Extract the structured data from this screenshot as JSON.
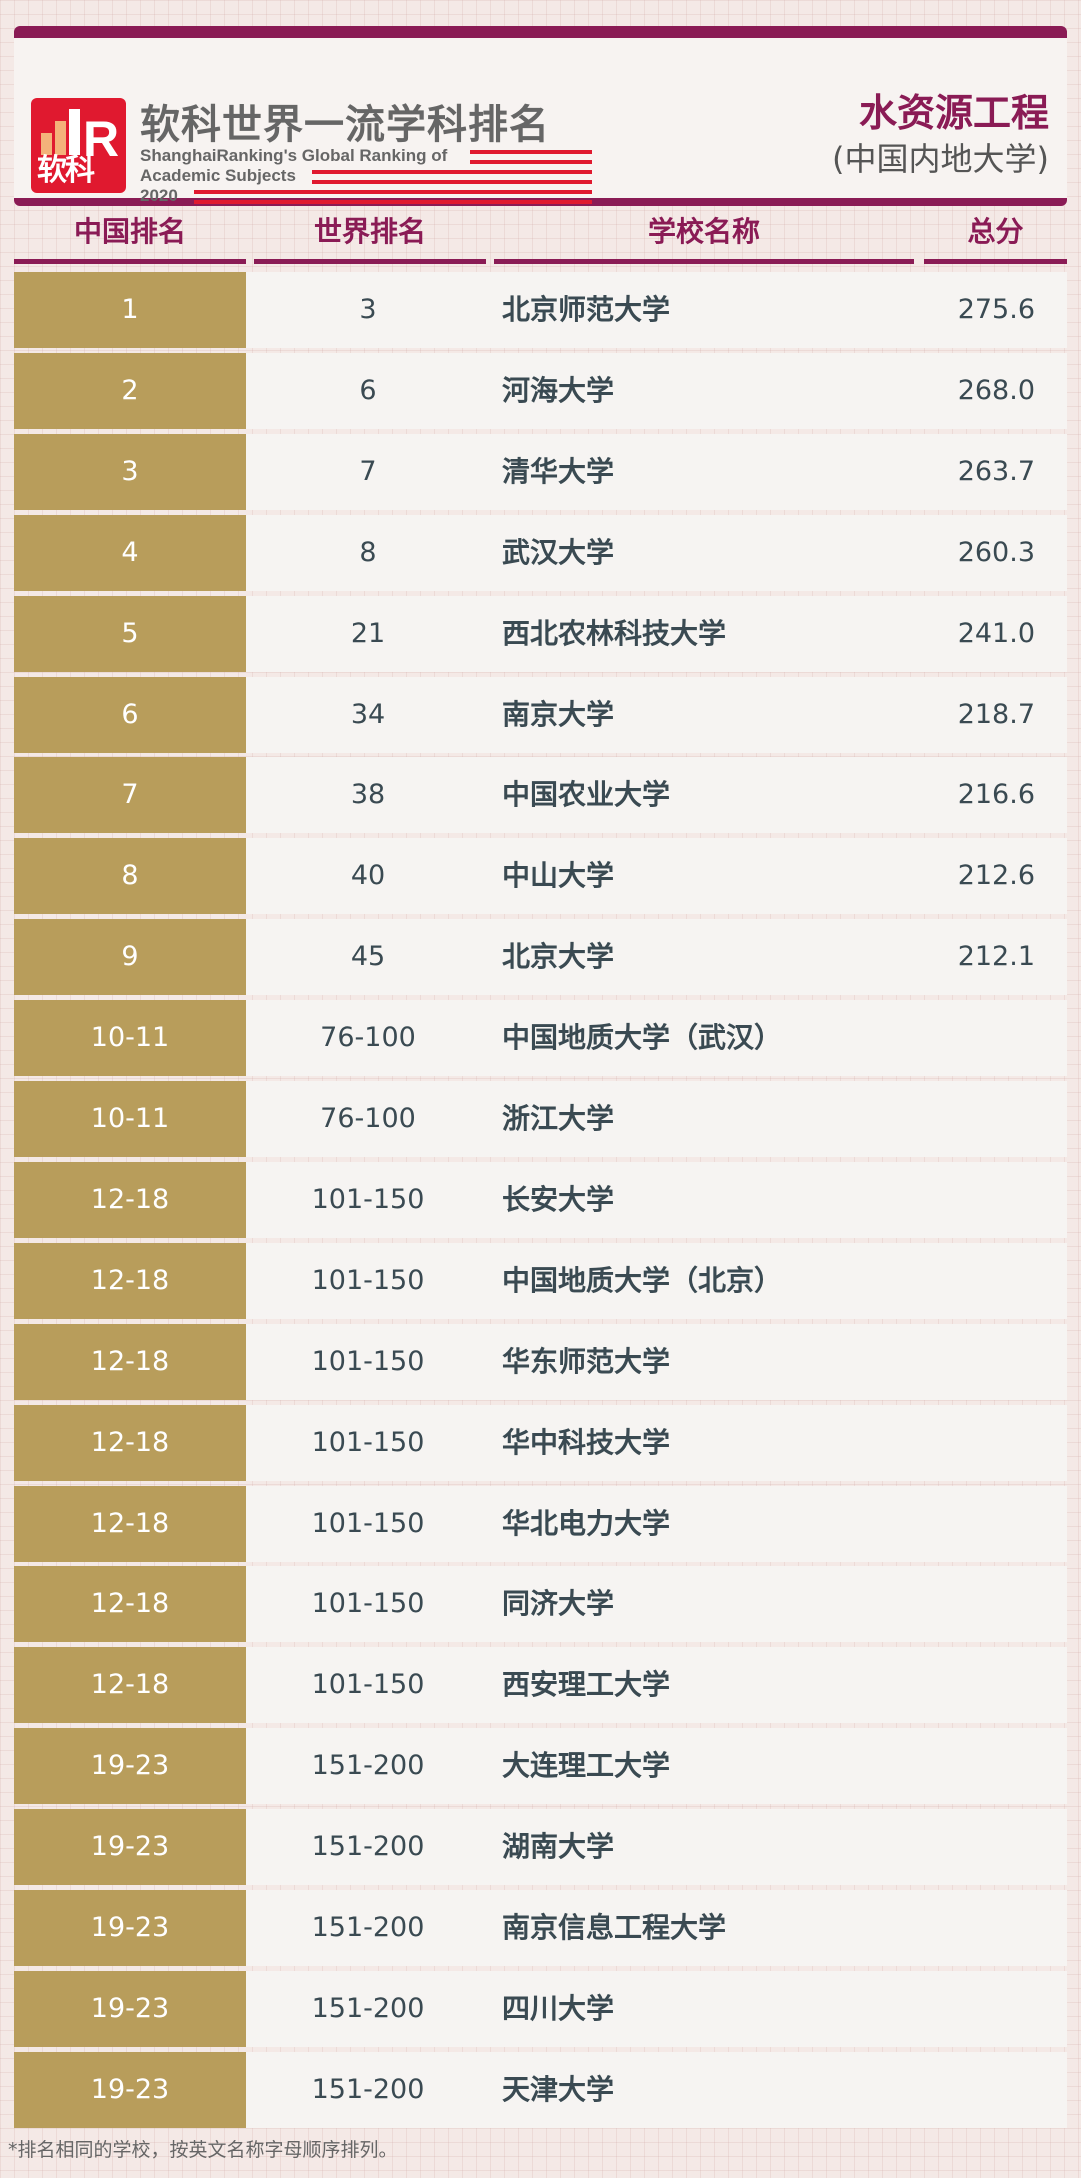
{
  "header": {
    "brand_cn": "软科世界一流学科排名",
    "brand_en_line1": "ShanghaiRanking's Global Ranking of",
    "brand_en_line2": "Academic Subjects",
    "year": "2020",
    "logo_text": "软科",
    "subject": "水资源工程",
    "region": "(中国内地大学)"
  },
  "colors": {
    "maroon": "#8a1b55",
    "gold": "#b89d5b",
    "red": "#e0192f"
  },
  "columns": [
    "中国排名",
    "世界排名",
    "学校名称",
    "总分"
  ],
  "rows": [
    {
      "cn": "1",
      "world": "3",
      "name": "北京师范大学",
      "score": "275.6"
    },
    {
      "cn": "2",
      "world": "6",
      "name": "河海大学",
      "score": "268.0"
    },
    {
      "cn": "3",
      "world": "7",
      "name": "清华大学",
      "score": "263.7"
    },
    {
      "cn": "4",
      "world": "8",
      "name": "武汉大学",
      "score": "260.3"
    },
    {
      "cn": "5",
      "world": "21",
      "name": "西北农林科技大学",
      "score": "241.0"
    },
    {
      "cn": "6",
      "world": "34",
      "name": "南京大学",
      "score": "218.7"
    },
    {
      "cn": "7",
      "world": "38",
      "name": "中国农业大学",
      "score": "216.6"
    },
    {
      "cn": "8",
      "world": "40",
      "name": "中山大学",
      "score": "212.6"
    },
    {
      "cn": "9",
      "world": "45",
      "name": "北京大学",
      "score": "212.1"
    },
    {
      "cn": "10-11",
      "world": "76-100",
      "name": "中国地质大学（武汉）",
      "score": ""
    },
    {
      "cn": "10-11",
      "world": "76-100",
      "name": "浙江大学",
      "score": ""
    },
    {
      "cn": "12-18",
      "world": "101-150",
      "name": "长安大学",
      "score": ""
    },
    {
      "cn": "12-18",
      "world": "101-150",
      "name": "中国地质大学（北京）",
      "score": ""
    },
    {
      "cn": "12-18",
      "world": "101-150",
      "name": "华东师范大学",
      "score": ""
    },
    {
      "cn": "12-18",
      "world": "101-150",
      "name": "华中科技大学",
      "score": ""
    },
    {
      "cn": "12-18",
      "world": "101-150",
      "name": "华北电力大学",
      "score": ""
    },
    {
      "cn": "12-18",
      "world": "101-150",
      "name": "同济大学",
      "score": ""
    },
    {
      "cn": "12-18",
      "world": "101-150",
      "name": "西安理工大学",
      "score": ""
    },
    {
      "cn": "19-23",
      "world": "151-200",
      "name": "大连理工大学",
      "score": ""
    },
    {
      "cn": "19-23",
      "world": "151-200",
      "name": "湖南大学",
      "score": ""
    },
    {
      "cn": "19-23",
      "world": "151-200",
      "name": "南京信息工程大学",
      "score": ""
    },
    {
      "cn": "19-23",
      "world": "151-200",
      "name": "四川大学",
      "score": ""
    },
    {
      "cn": "19-23",
      "world": "151-200",
      "name": "天津大学",
      "score": ""
    }
  ],
  "footnote": "*排名相同的学校，按英文名称字母顺序排列。"
}
